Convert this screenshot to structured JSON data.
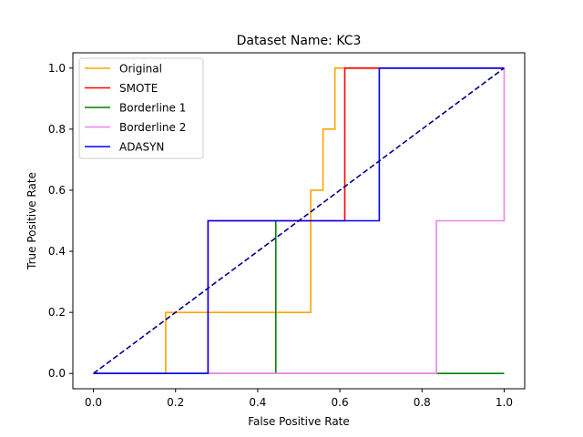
{
  "chart_data": {
    "type": "line",
    "title": "Dataset Name: KC3",
    "xlabel": "False Positive Rate",
    "ylabel": "True Positive Rate",
    "xlim": [
      -0.05,
      1.05
    ],
    "ylim": [
      -0.05,
      1.05
    ],
    "xticks": [
      "0.0",
      "0.2",
      "0.4",
      "0.6",
      "0.8",
      "1.0"
    ],
    "yticks": [
      "0.0",
      "0.2",
      "0.4",
      "0.6",
      "0.8",
      "1.0"
    ],
    "grid": false,
    "legend_position": "upper left",
    "series": [
      {
        "name": "Original",
        "color": "#ffa500",
        "x": [
          0.0,
          0.176,
          0.176,
          0.529,
          0.529,
          0.559,
          0.559,
          0.588,
          0.588,
          1.0
        ],
        "y": [
          0.0,
          0.0,
          0.2,
          0.2,
          0.6,
          0.6,
          0.8,
          0.8,
          1.0,
          1.0
        ]
      },
      {
        "name": "SMOTE",
        "color": "#ff0000",
        "x": [
          0.0,
          0.279,
          0.279,
          0.612,
          0.612,
          1.0
        ],
        "y": [
          0.0,
          0.0,
          0.5,
          0.5,
          1.0,
          1.0
        ]
      },
      {
        "name": "Borderline 1",
        "color": "#008000",
        "x": [
          0.0,
          0.444,
          0.444,
          0.444,
          0.444,
          1.0
        ],
        "y": [
          0.0,
          0.0,
          0.5,
          0.5,
          0.0,
          0.0
        ]
      },
      {
        "name": "Borderline 2",
        "color": "#ee82ee",
        "x": [
          0.0,
          0.835,
          0.835,
          1.0,
          1.0
        ],
        "y": [
          0.0,
          0.0,
          0.5,
          0.5,
          1.0
        ]
      },
      {
        "name": "ADASYN",
        "color": "#0000ff",
        "x": [
          0.0,
          0.279,
          0.279,
          0.696,
          0.696,
          1.0
        ],
        "y": [
          0.0,
          0.0,
          0.5,
          0.5,
          1.0,
          1.0
        ]
      }
    ],
    "reference_line": {
      "color": "#00008b",
      "style": "dashed",
      "x": [
        0.0,
        1.0
      ],
      "y": [
        0.0,
        1.0
      ]
    }
  }
}
